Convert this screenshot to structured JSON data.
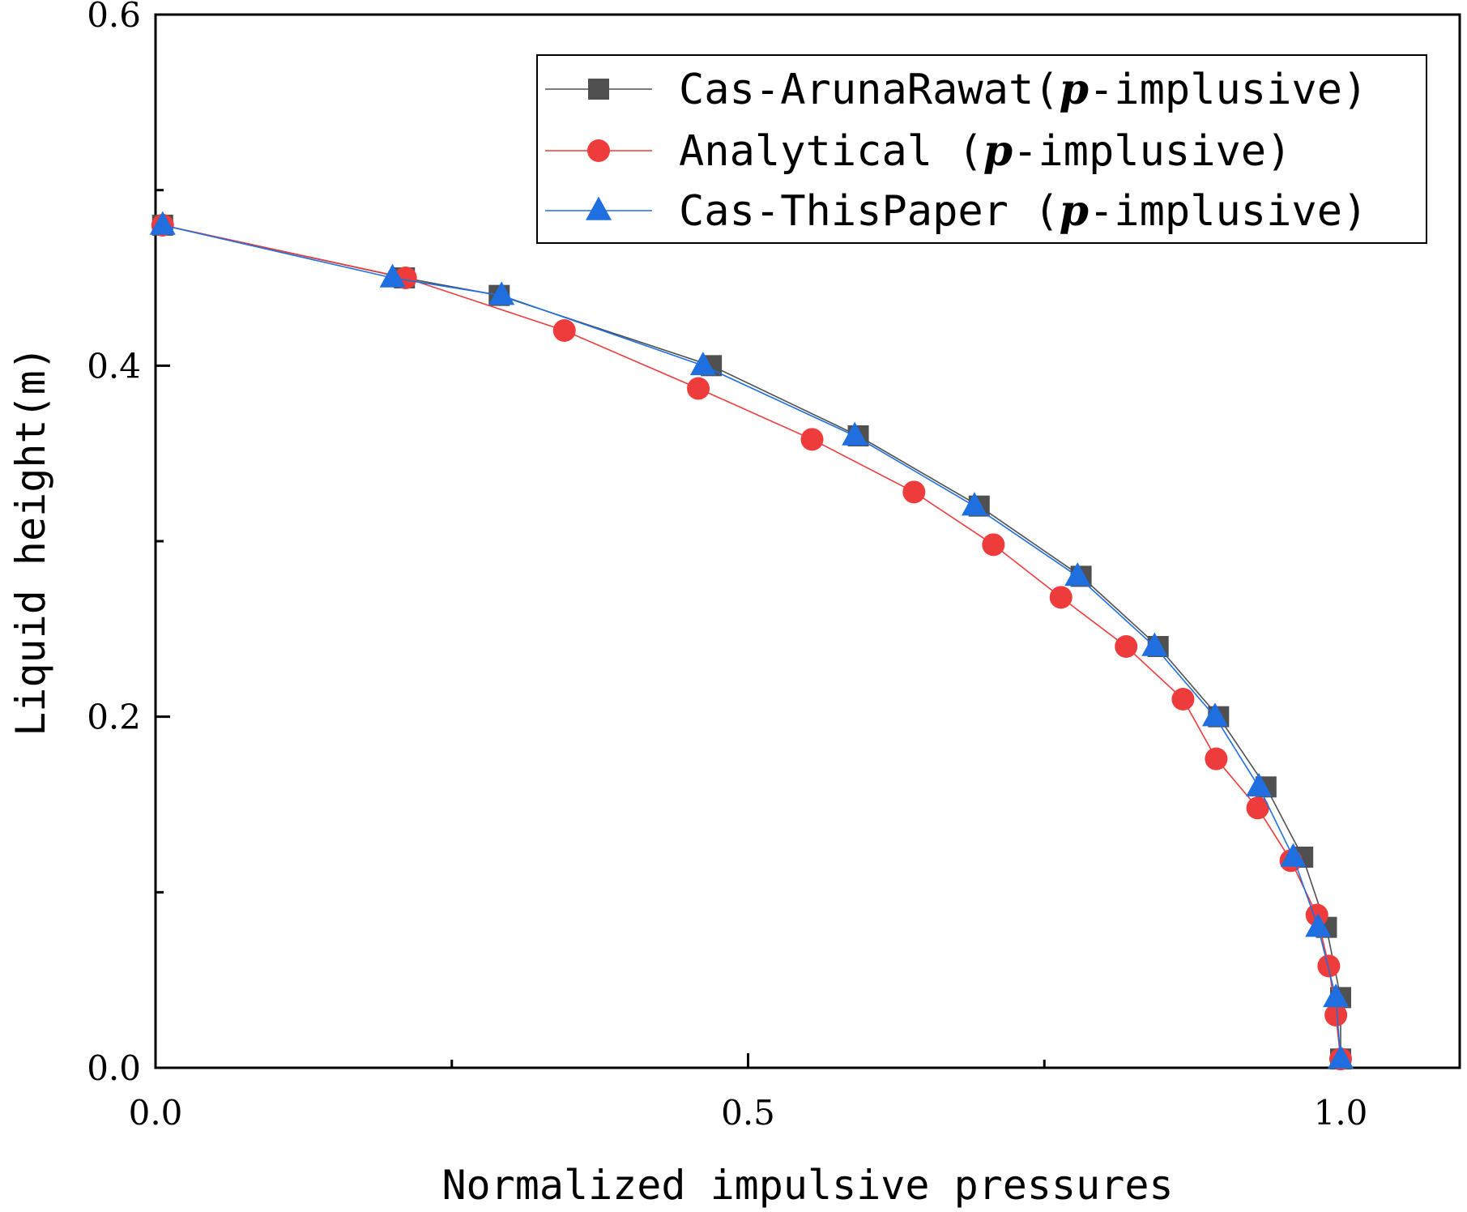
{
  "chart_data": {
    "type": "line",
    "title": "",
    "xlabel": "Normalized impulsive pressures",
    "ylabel": "Liquid height(m)",
    "xlim": [
      0,
      1.1
    ],
    "ylim": [
      0,
      0.6
    ],
    "x_ticks": [
      {
        "value": 0.0,
        "label": "0.0"
      },
      {
        "value": 0.5,
        "label": "0.5"
      },
      {
        "value": 1.0,
        "label": "1.0"
      }
    ],
    "x_minor_ticks": [
      0.25,
      0.75
    ],
    "y_ticks": [
      {
        "value": 0.0,
        "label": "0.0"
      },
      {
        "value": 0.2,
        "label": "0.2"
      },
      {
        "value": 0.4,
        "label": "0.4"
      },
      {
        "value": 0.6,
        "label": "0.6"
      }
    ],
    "y_minor_ticks": [
      0.1,
      0.3,
      0.5
    ],
    "grid": false,
    "legend_position": "top-right",
    "series": [
      {
        "name": "Cas-ArunaRawat",
        "legend_prefix": "Cas-ArunaRawat(",
        "marker": "square",
        "color": "#505050",
        "points": [
          [
            0.006,
            0.48
          ],
          [
            0.21,
            0.45
          ],
          [
            0.29,
            0.44
          ],
          [
            0.469,
            0.4
          ],
          [
            0.593,
            0.36
          ],
          [
            0.695,
            0.32
          ],
          [
            0.781,
            0.28
          ],
          [
            0.846,
            0.24
          ],
          [
            0.897,
            0.2
          ],
          [
            0.937,
            0.16
          ],
          [
            0.968,
            0.12
          ],
          [
            0.988,
            0.08
          ],
          [
            1.0,
            0.04
          ],
          [
            1.0,
            0.005
          ]
        ]
      },
      {
        "name": "Analytical",
        "legend_prefix": "Analytical    (",
        "marker": "circle",
        "color": "#ee3b3b",
        "points": [
          [
            0.006,
            0.48
          ],
          [
            0.211,
            0.45
          ],
          [
            0.345,
            0.42
          ],
          [
            0.458,
            0.387
          ],
          [
            0.554,
            0.358
          ],
          [
            0.64,
            0.328
          ],
          [
            0.707,
            0.298
          ],
          [
            0.764,
            0.268
          ],
          [
            0.819,
            0.24
          ],
          [
            0.867,
            0.21
          ],
          [
            0.895,
            0.176
          ],
          [
            0.93,
            0.148
          ],
          [
            0.958,
            0.118
          ],
          [
            0.98,
            0.087
          ],
          [
            0.99,
            0.058
          ],
          [
            0.996,
            0.03
          ],
          [
            1.0,
            0.005
          ]
        ]
      },
      {
        "name": "Cas-ThisPaper",
        "legend_prefix": "Cas-ThisPaper (",
        "marker": "triangle",
        "color": "#1f6fe0",
        "points": [
          [
            0.006,
            0.48
          ],
          [
            0.2,
            0.45
          ],
          [
            0.292,
            0.44
          ],
          [
            0.462,
            0.4
          ],
          [
            0.59,
            0.36
          ],
          [
            0.691,
            0.32
          ],
          [
            0.778,
            0.28
          ],
          [
            0.843,
            0.24
          ],
          [
            0.894,
            0.2
          ],
          [
            0.931,
            0.16
          ],
          [
            0.96,
            0.12
          ],
          [
            0.981,
            0.08
          ],
          [
            0.996,
            0.04
          ],
          [
            1.0,
            0.005
          ]
        ]
      }
    ],
    "legend_italic": "p",
    "legend_suffix": "-implusive)"
  }
}
